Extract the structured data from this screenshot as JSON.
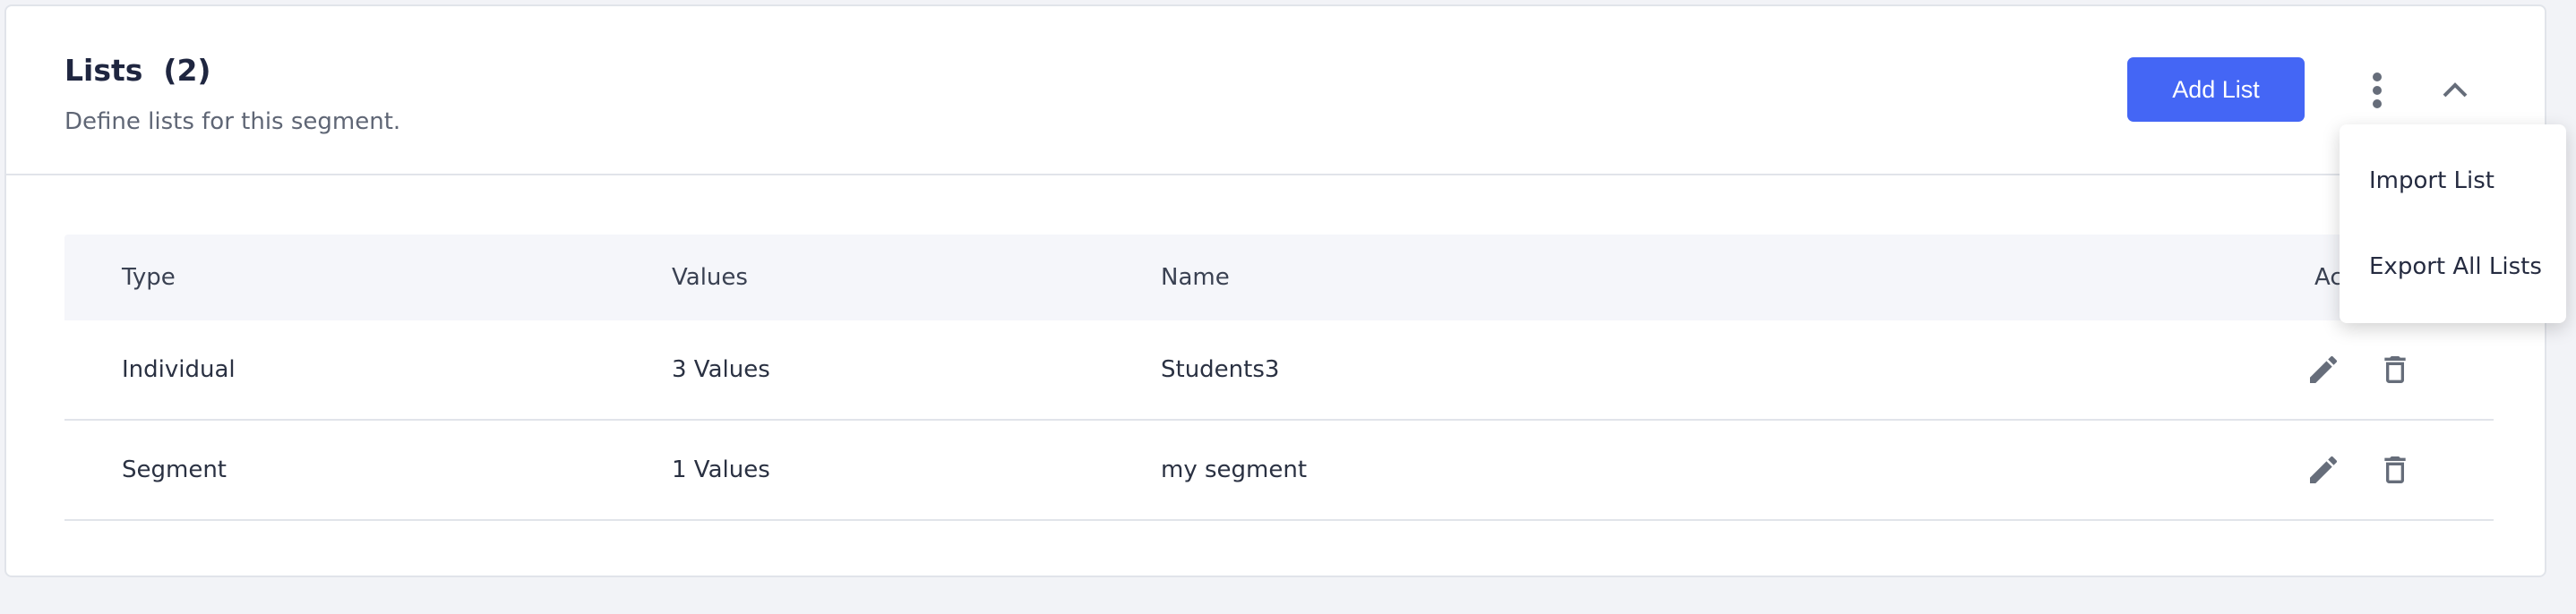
{
  "header": {
    "title": "Lists  (2)",
    "subtitle": "Define lists for this segment.",
    "add_button": "Add List",
    "more_icon": "kebab-vertical-icon",
    "collapse_icon": "chevron-up-icon"
  },
  "table": {
    "columns": [
      "Type",
      "Values",
      "Name",
      "Actions"
    ],
    "rows": [
      {
        "type": "Individual",
        "values": "3 Values",
        "name": "Students3"
      },
      {
        "type": "Segment",
        "values": "1 Values",
        "name": "my segment"
      }
    ]
  },
  "menu": {
    "items": [
      "Import List",
      "Export All Lists"
    ]
  },
  "colors": {
    "accent": "#4466f5",
    "icon": "#666d7a"
  }
}
